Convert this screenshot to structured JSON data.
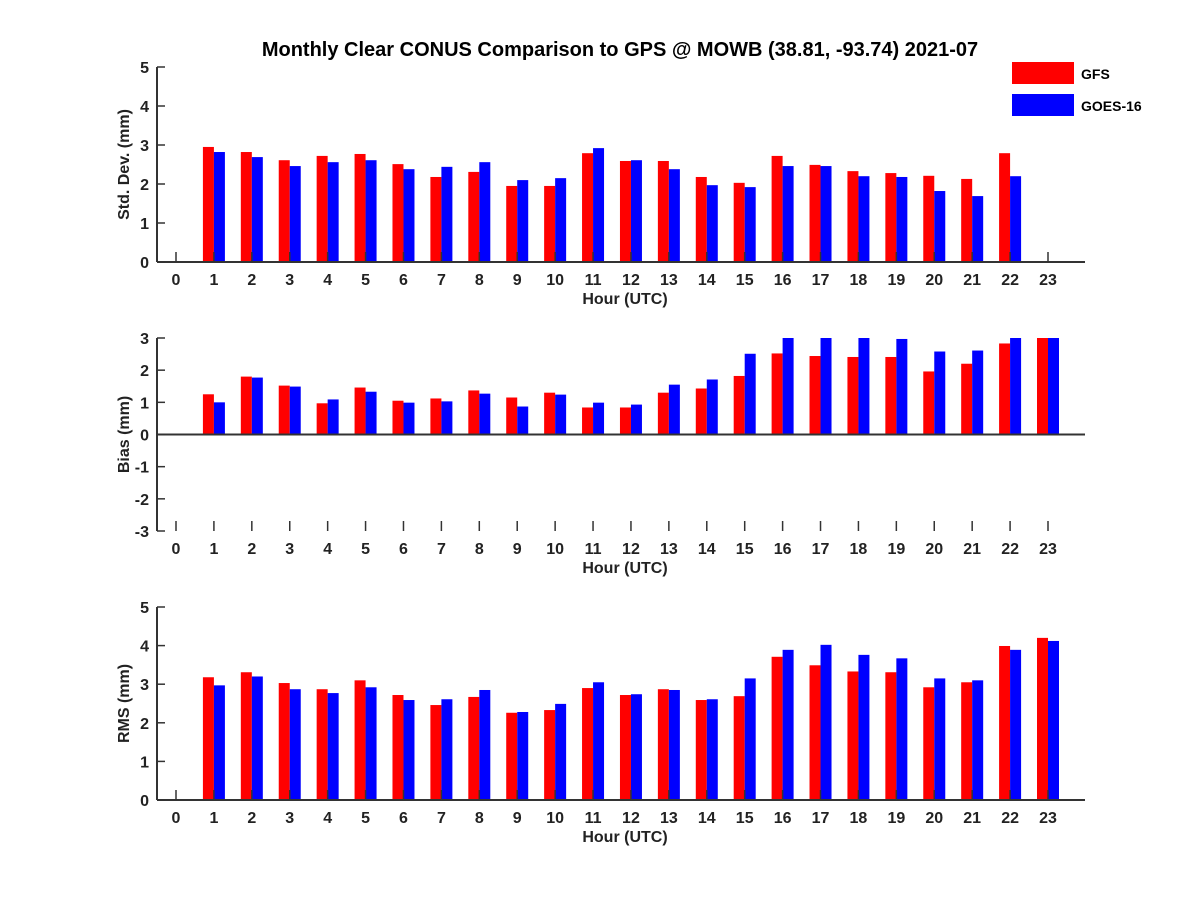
{
  "title": "Monthly Clear CONUS Comparison to GPS @ MOWB (38.81, -93.74) 2021-07",
  "legend": {
    "placement": "top-right",
    "entries": [
      {
        "name": "GFS",
        "color": "#ff0000"
      },
      {
        "name": "GOES-16",
        "color": "#0000ff"
      }
    ]
  },
  "chart_data": [
    {
      "type": "bar",
      "xlabel": "Hour (UTC)",
      "ylabel": "Std. Dev. (mm)",
      "ylim": [
        0,
        5
      ],
      "yticks": [
        0,
        1,
        2,
        3,
        4,
        5
      ],
      "categories": [
        "0",
        "1",
        "2",
        "3",
        "4",
        "5",
        "6",
        "7",
        "8",
        "9",
        "10",
        "11",
        "12",
        "13",
        "14",
        "15",
        "16",
        "17",
        "18",
        "19",
        "20",
        "21",
        "22",
        "23"
      ],
      "series": [
        {
          "name": "GFS",
          "color": "#ff0000",
          "values": [
            null,
            2.95,
            2.82,
            2.61,
            2.72,
            2.77,
            2.51,
            2.18,
            2.31,
            1.95,
            1.95,
            2.79,
            2.59,
            2.59,
            2.18,
            2.03,
            2.72,
            2.49,
            2.33,
            2.28,
            2.21,
            2.13,
            2.79,
            null
          ]
        },
        {
          "name": "GOES-16",
          "color": "#0000ff",
          "values": [
            null,
            2.82,
            2.69,
            2.46,
            2.56,
            2.61,
            2.38,
            2.44,
            2.56,
            2.1,
            2.15,
            2.92,
            2.61,
            2.38,
            1.97,
            1.92,
            2.46,
            2.46,
            2.2,
            2.18,
            1.82,
            1.69,
            2.2,
            null
          ]
        }
      ]
    },
    {
      "type": "bar",
      "xlabel": "Hour (UTC)",
      "ylabel": "Bias (mm)",
      "ylim": [
        -3,
        3
      ],
      "yticks": [
        -3,
        -2,
        -1,
        0,
        1,
        2,
        3
      ],
      "categories": [
        "0",
        "1",
        "2",
        "3",
        "4",
        "5",
        "6",
        "7",
        "8",
        "9",
        "10",
        "11",
        "12",
        "13",
        "14",
        "15",
        "16",
        "17",
        "18",
        "19",
        "20",
        "21",
        "22",
        "23"
      ],
      "series": [
        {
          "name": "GFS",
          "color": "#ff0000",
          "values": [
            null,
            1.25,
            1.8,
            1.52,
            0.97,
            1.46,
            1.05,
            1.12,
            1.37,
            1.15,
            1.3,
            0.84,
            0.84,
            1.3,
            1.43,
            1.82,
            2.52,
            2.44,
            2.41,
            2.41,
            1.96,
            2.2,
            2.83,
            3.0
          ]
        },
        {
          "name": "GOES-16",
          "color": "#0000ff",
          "values": [
            null,
            1.0,
            1.77,
            1.49,
            1.09,
            1.33,
            0.99,
            1.03,
            1.27,
            0.87,
            1.24,
            0.99,
            0.93,
            1.55,
            1.71,
            2.51,
            3.0,
            3.0,
            3.0,
            2.97,
            2.58,
            2.61,
            3.0,
            3.0
          ]
        }
      ]
    },
    {
      "type": "bar",
      "xlabel": "Hour (UTC)",
      "ylabel": "RMS (mm)",
      "ylim": [
        0,
        5
      ],
      "yticks": [
        0,
        1,
        2,
        3,
        4,
        5
      ],
      "categories": [
        "0",
        "1",
        "2",
        "3",
        "4",
        "5",
        "6",
        "7",
        "8",
        "9",
        "10",
        "11",
        "12",
        "13",
        "14",
        "15",
        "16",
        "17",
        "18",
        "19",
        "20",
        "21",
        "22",
        "23"
      ],
      "series": [
        {
          "name": "GFS",
          "color": "#ff0000",
          "values": [
            null,
            3.18,
            3.31,
            3.03,
            2.87,
            3.1,
            2.72,
            2.46,
            2.67,
            2.26,
            2.33,
            2.9,
            2.72,
            2.87,
            2.59,
            2.69,
            3.71,
            3.49,
            3.33,
            3.31,
            2.92,
            3.05,
            3.99,
            4.2
          ]
        },
        {
          "name": "GOES-16",
          "color": "#0000ff",
          "values": [
            null,
            2.97,
            3.2,
            2.87,
            2.77,
            2.92,
            2.59,
            2.61,
            2.85,
            2.28,
            2.49,
            3.05,
            2.74,
            2.85,
            2.61,
            3.15,
            3.89,
            4.02,
            3.76,
            3.67,
            3.15,
            3.1,
            3.89,
            4.12
          ]
        }
      ]
    }
  ]
}
